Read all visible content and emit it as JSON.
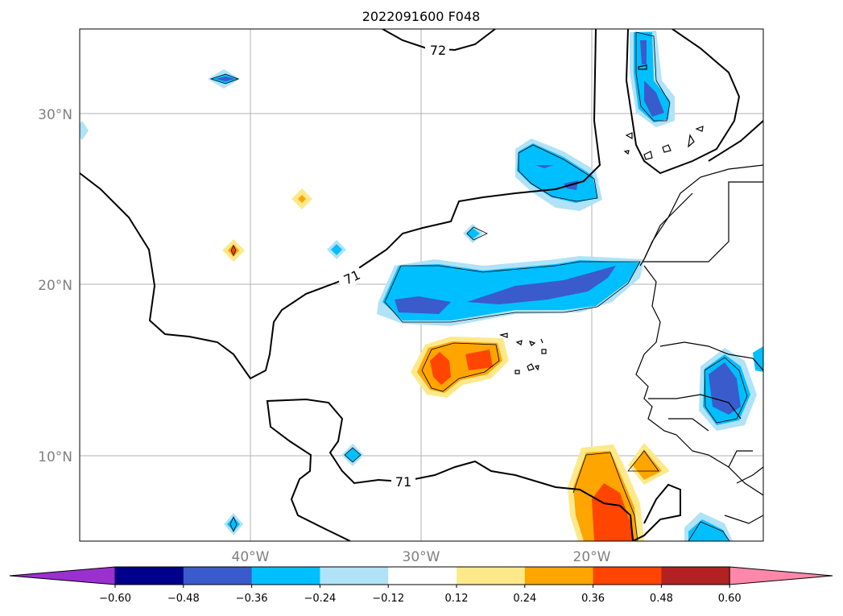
{
  "map": {
    "title": "2022091600 F048",
    "latitude_labels": [
      "30°N",
      "20°N",
      "10°N"
    ],
    "longitude_labels": [
      "40°W",
      "30°W",
      "20°W"
    ],
    "contour_labels": [
      "72",
      "71",
      "71"
    ],
    "colorbar": {
      "tick_labels": [
        "−0.60",
        "−0.48",
        "−0.36",
        "−0.24",
        "−0.12",
        "0.12",
        "0.24",
        "0.36",
        "0.48",
        "0.60"
      ],
      "colors": [
        "#9b30d0",
        "#00008b",
        "#3a5bcc",
        "#00bfff",
        "#b0e2f8",
        "#ffffff",
        "#fde98a",
        "#ffa500",
        "#ff4500",
        "#b22222",
        "#ff88aa"
      ]
    }
  }
}
